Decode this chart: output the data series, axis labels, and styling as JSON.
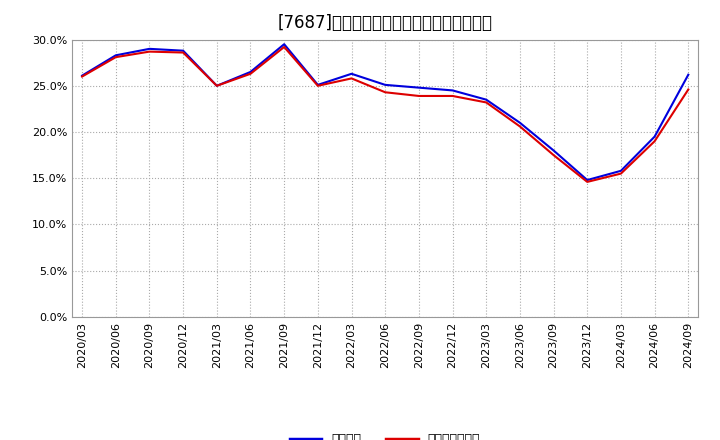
{
  "title": "[7687]　固定比率、固定長期適合率の推移",
  "x_labels": [
    "2020/03",
    "2020/06",
    "2020/09",
    "2020/12",
    "2021/03",
    "2021/06",
    "2021/09",
    "2021/12",
    "2022/03",
    "2022/06",
    "2022/09",
    "2022/12",
    "2023/03",
    "2023/06",
    "2023/09",
    "2023/12",
    "2024/03",
    "2024/06",
    "2024/09"
  ],
  "fixed_ratio": [
    26.1,
    28.3,
    29.0,
    28.8,
    25.0,
    26.5,
    29.5,
    25.1,
    26.3,
    25.1,
    24.8,
    24.5,
    23.5,
    21.0,
    18.0,
    14.8,
    15.8,
    19.5,
    26.2
  ],
  "fixed_long_ratio": [
    26.0,
    28.1,
    28.7,
    28.6,
    25.0,
    26.3,
    29.2,
    25.0,
    25.8,
    24.3,
    23.9,
    23.9,
    23.2,
    20.6,
    17.5,
    14.6,
    15.5,
    19.0,
    24.6
  ],
  "line1_color": "#0000dd",
  "line2_color": "#dd0000",
  "legend1": "固定比率",
  "legend2": "固定長期適合率",
  "ylim": [
    0.0,
    30.0
  ],
  "yticks": [
    0.0,
    5.0,
    10.0,
    15.0,
    20.0,
    25.0,
    30.0
  ],
  "bg_color": "#ffffff",
  "plot_bg_color": "#ffffff",
  "grid_color": "#aaaaaa",
  "title_fontsize": 12,
  "line_width": 1.5
}
